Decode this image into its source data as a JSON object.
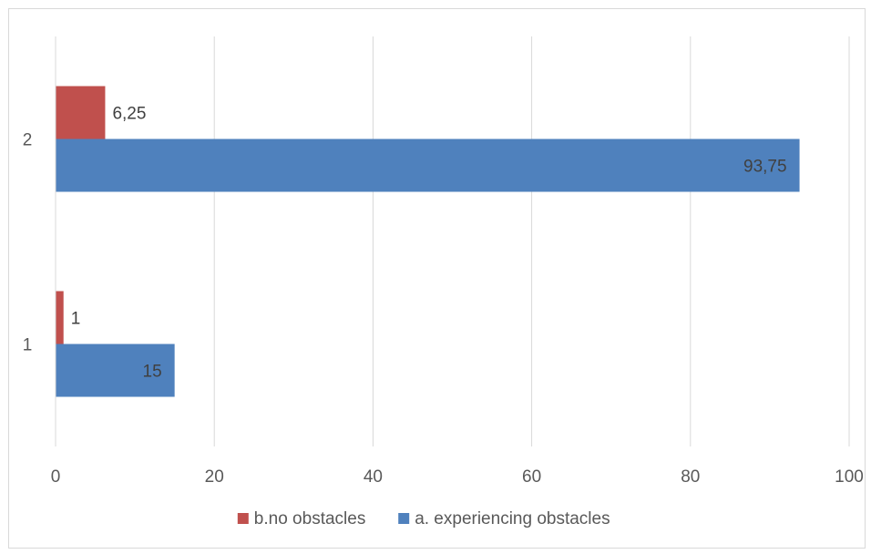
{
  "chart_data": {
    "type": "bar",
    "orientation": "horizontal",
    "categories": [
      "1",
      "2"
    ],
    "series": [
      {
        "name": "a. experiencing obstacles",
        "values": [
          15,
          93.75
        ],
        "labels": [
          "15",
          "93,75"
        ],
        "color": "#4f81bd"
      },
      {
        "name": "b.no obstacles",
        "values": [
          1,
          6.25
        ],
        "labels": [
          "1",
          "6,25"
        ],
        "color": "#c0504d"
      }
    ],
    "xlim": [
      0,
      100
    ],
    "x_ticks": [
      0,
      20,
      40,
      60,
      80,
      100
    ],
    "x_tick_labels": [
      "0",
      "20",
      "40",
      "60",
      "80",
      "100"
    ],
    "grid": true,
    "legend_position": "bottom",
    "legend_order": [
      "b.no obstacles",
      "a. experiencing obstacles"
    ],
    "title": "",
    "xlabel": "",
    "ylabel": ""
  }
}
